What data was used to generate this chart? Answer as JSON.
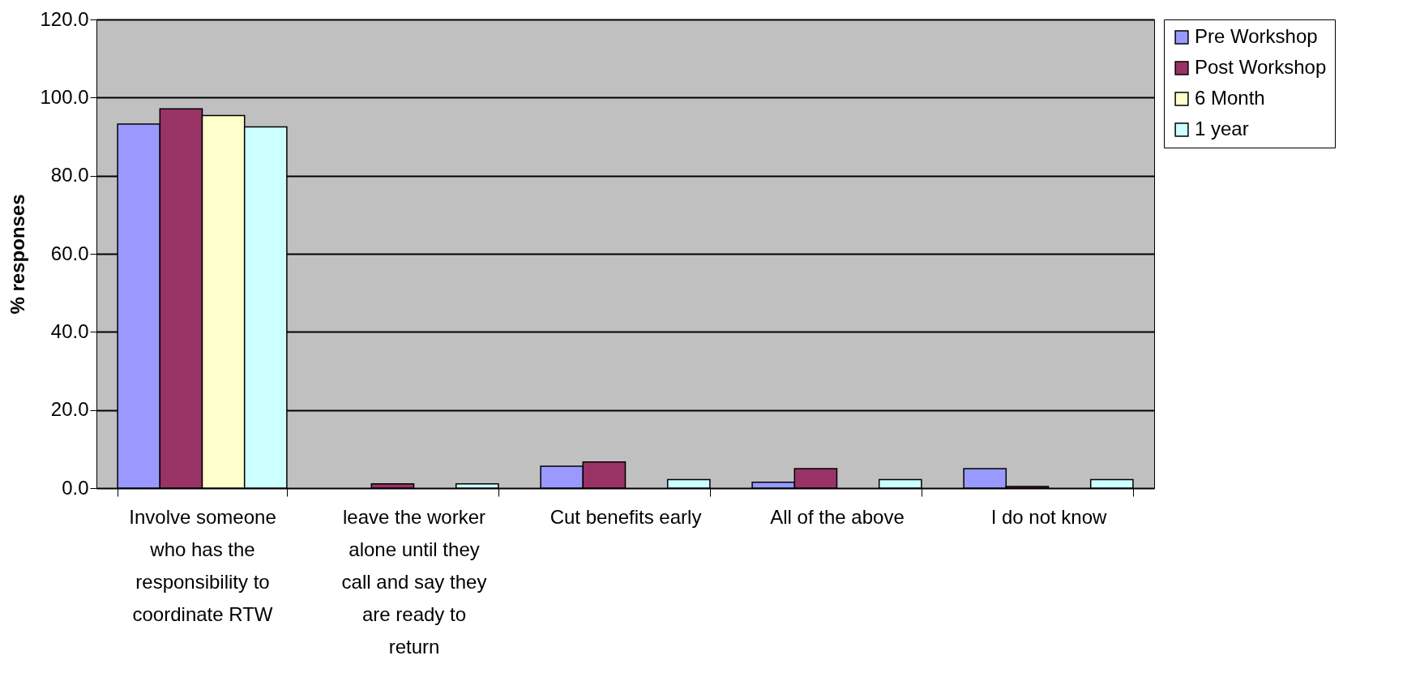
{
  "chart_data": {
    "type": "bar",
    "ylabel": "% responses",
    "categories": [
      "Involve someone who has the responsibility to coordinate RTW",
      "leave the worker alone until they call and say they are ready to return",
      "Cut benefits early",
      "All of the above",
      "I do not know"
    ],
    "series": [
      {
        "name": "Pre Workshop",
        "color": "#9999ff",
        "values": [
          93.2,
          null,
          5.6,
          1.5,
          5.0
        ]
      },
      {
        "name": "Post Workshop",
        "color": "#993366",
        "values": [
          97.1,
          1.1,
          6.7,
          5.0,
          0.4
        ]
      },
      {
        "name": "6 Month",
        "color": "#ffffcc",
        "values": [
          95.4,
          null,
          null,
          null,
          null
        ]
      },
      {
        "name": "1 year",
        "color": "#ccffff",
        "values": [
          92.5,
          1.1,
          2.2,
          2.2,
          2.2
        ]
      }
    ],
    "ylim": [
      0,
      120
    ],
    "yticks": [
      {
        "value": 0,
        "label": "0.0"
      },
      {
        "value": 20,
        "label": "20.0"
      },
      {
        "value": 40,
        "label": "40.0"
      },
      {
        "value": 60,
        "label": "60.0"
      },
      {
        "value": 80,
        "label": "80.0"
      },
      {
        "value": 100,
        "label": "100.0"
      },
      {
        "value": 120,
        "label": "120.0"
      }
    ],
    "grid": "y",
    "legend": "right"
  }
}
